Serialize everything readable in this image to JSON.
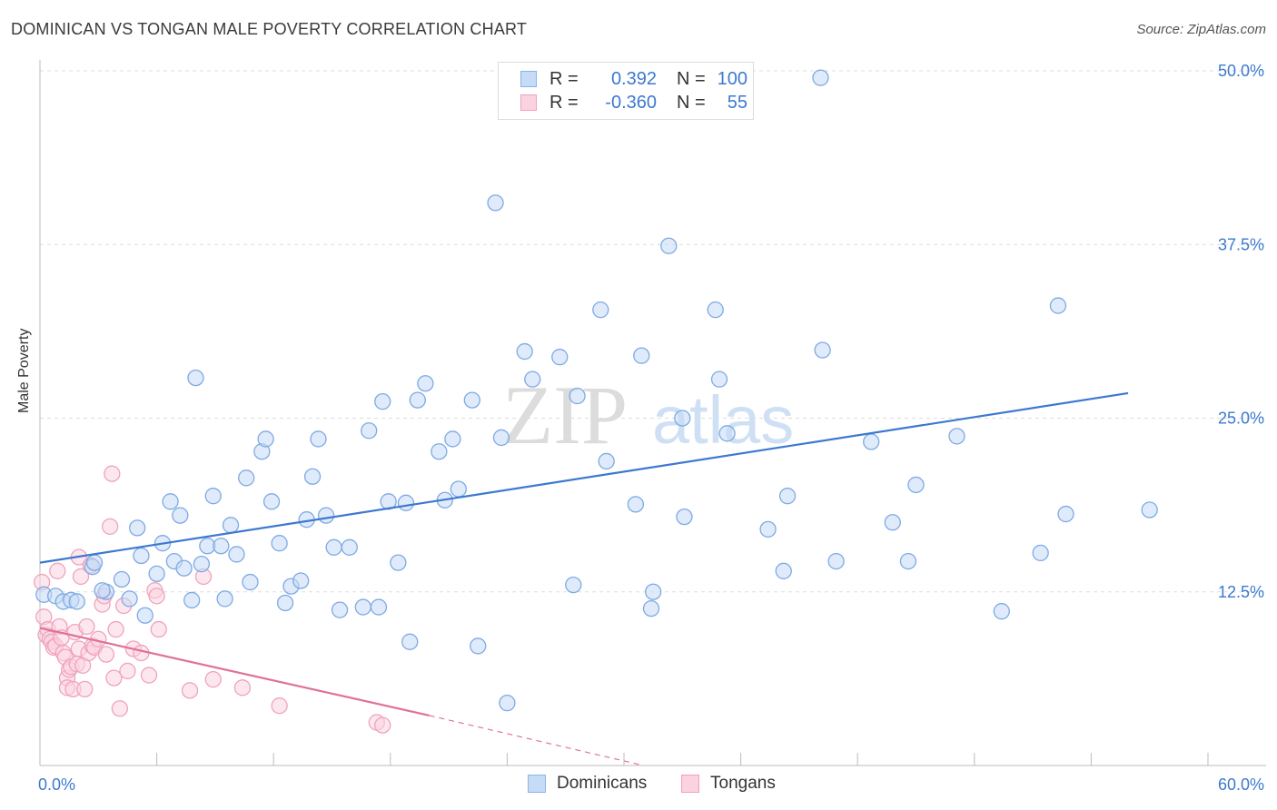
{
  "title": "DOMINICAN VS TONGAN MALE POVERTY CORRELATION CHART",
  "source": "Source: ZipAtlas.com",
  "watermark": {
    "zip": "ZIP",
    "atlas": "atlas"
  },
  "legend_top": {
    "rows": [
      {
        "r_label": "R =",
        "r_value": "0.392",
        "n_label": "N =",
        "n_value": "100",
        "color": "#8ab4ea",
        "fill": "#c5dbf6"
      },
      {
        "r_label": "R =",
        "r_value": "-0.360",
        "n_label": "N =",
        "n_value": "55",
        "color": "#f0a0ba",
        "fill": "#fbd3e0"
      }
    ]
  },
  "chart_data": {
    "type": "scatter",
    "title": "DOMINICAN VS TONGAN MALE POVERTY CORRELATION CHART",
    "xlabel": "",
    "ylabel": "Male Poverty",
    "xlim": [
      0,
      60
    ],
    "ylim": [
      0,
      50
    ],
    "x_tick_labels": [
      "0.0%",
      "60.0%"
    ],
    "y_ticks": [
      12.5,
      25.0,
      37.5,
      50.0
    ],
    "y_tick_labels": [
      "12.5%",
      "25.0%",
      "37.5%",
      "50.0%"
    ],
    "grid": true,
    "legend_position": "bottom",
    "series": [
      {
        "name": "Dominicans",
        "color": "#3c79d0",
        "marker_fill": "#c5dbf6",
        "marker_stroke": "#7eaae3",
        "trend": {
          "x": [
            0,
            55.9
          ],
          "y": [
            14.6,
            26.8
          ],
          "dashed_to": null
        },
        "points": [
          [
            0.2,
            12.3
          ],
          [
            0.8,
            12.2
          ],
          [
            1.2,
            11.8
          ],
          [
            1.6,
            11.9
          ],
          [
            1.9,
            11.8
          ],
          [
            2.7,
            14.3
          ],
          [
            2.8,
            14.6
          ],
          [
            3.4,
            12.5
          ],
          [
            3.2,
            12.6
          ],
          [
            4.2,
            13.4
          ],
          [
            4.6,
            12.0
          ],
          [
            5.0,
            17.1
          ],
          [
            5.2,
            15.1
          ],
          [
            5.4,
            10.8
          ],
          [
            6.0,
            13.8
          ],
          [
            6.3,
            16.0
          ],
          [
            6.7,
            19.0
          ],
          [
            6.9,
            14.7
          ],
          [
            7.2,
            18.0
          ],
          [
            7.4,
            14.2
          ],
          [
            7.8,
            11.9
          ],
          [
            8.0,
            27.9
          ],
          [
            8.3,
            14.5
          ],
          [
            8.6,
            15.8
          ],
          [
            8.9,
            19.4
          ],
          [
            9.3,
            15.8
          ],
          [
            9.5,
            12.0
          ],
          [
            9.8,
            17.3
          ],
          [
            10.1,
            15.2
          ],
          [
            10.6,
            20.7
          ],
          [
            10.8,
            13.2
          ],
          [
            11.4,
            22.6
          ],
          [
            11.6,
            23.5
          ],
          [
            11.9,
            19.0
          ],
          [
            12.3,
            16.0
          ],
          [
            12.6,
            11.7
          ],
          [
            12.9,
            12.9
          ],
          [
            13.4,
            13.3
          ],
          [
            13.7,
            17.7
          ],
          [
            14.0,
            20.8
          ],
          [
            14.3,
            23.5
          ],
          [
            14.7,
            18.0
          ],
          [
            15.1,
            15.7
          ],
          [
            15.4,
            11.2
          ],
          [
            15.9,
            15.7
          ],
          [
            16.6,
            11.4
          ],
          [
            16.9,
            24.1
          ],
          [
            17.4,
            11.4
          ],
          [
            17.6,
            26.2
          ],
          [
            17.9,
            19.0
          ],
          [
            18.4,
            14.6
          ],
          [
            18.8,
            18.9
          ],
          [
            19.0,
            8.9
          ],
          [
            19.4,
            26.3
          ],
          [
            19.8,
            27.5
          ],
          [
            20.5,
            22.6
          ],
          [
            20.8,
            19.1
          ],
          [
            21.2,
            23.5
          ],
          [
            21.5,
            19.9
          ],
          [
            22.2,
            26.3
          ],
          [
            22.5,
            8.6
          ],
          [
            23.4,
            40.5
          ],
          [
            23.7,
            23.6
          ],
          [
            24.0,
            4.5
          ],
          [
            24.9,
            29.8
          ],
          [
            25.3,
            27.8
          ],
          [
            26.7,
            29.4
          ],
          [
            27.4,
            13.0
          ],
          [
            27.6,
            26.6
          ],
          [
            28.8,
            32.8
          ],
          [
            29.1,
            21.9
          ],
          [
            30.6,
            18.8
          ],
          [
            30.9,
            29.5
          ],
          [
            31.4,
            11.3
          ],
          [
            31.5,
            12.5
          ],
          [
            32.3,
            37.4
          ],
          [
            33.0,
            25.0
          ],
          [
            33.1,
            17.9
          ],
          [
            34.7,
            32.8
          ],
          [
            34.9,
            27.8
          ],
          [
            35.3,
            23.9
          ],
          [
            37.4,
            17.0
          ],
          [
            38.2,
            14.0
          ],
          [
            38.4,
            19.4
          ],
          [
            40.1,
            49.5
          ],
          [
            40.2,
            29.9
          ],
          [
            40.9,
            14.7
          ],
          [
            42.7,
            23.3
          ],
          [
            43.8,
            17.5
          ],
          [
            44.6,
            14.7
          ],
          [
            45.0,
            20.2
          ],
          [
            47.1,
            23.7
          ],
          [
            49.4,
            11.1
          ],
          [
            51.4,
            15.3
          ],
          [
            52.3,
            33.1
          ],
          [
            52.7,
            18.1
          ],
          [
            57.0,
            18.4
          ]
        ]
      },
      {
        "name": "Tongans",
        "color": "#e0709a",
        "marker_fill": "#fbd3e0",
        "marker_stroke": "#f0a3bc",
        "trend": {
          "x": [
            0,
            20.0
          ],
          "y": [
            9.9,
            3.6
          ],
          "dashed_to": [
            31.0,
            0.0
          ]
        },
        "points": [
          [
            0.1,
            13.2
          ],
          [
            0.2,
            10.7
          ],
          [
            0.3,
            9.4
          ],
          [
            0.4,
            9.8
          ],
          [
            0.5,
            9.1
          ],
          [
            0.6,
            8.9
          ],
          [
            0.7,
            8.5
          ],
          [
            0.8,
            8.6
          ],
          [
            0.9,
            14.0
          ],
          [
            1.0,
            10.0
          ],
          [
            1.1,
            9.2
          ],
          [
            1.2,
            8.1
          ],
          [
            1.3,
            7.8
          ],
          [
            1.4,
            6.3
          ],
          [
            1.4,
            5.6
          ],
          [
            1.5,
            6.9
          ],
          [
            1.6,
            7.1
          ],
          [
            1.8,
            9.6
          ],
          [
            1.7,
            5.5
          ],
          [
            1.9,
            7.3
          ],
          [
            2.0,
            8.4
          ],
          [
            2.0,
            15.0
          ],
          [
            2.1,
            13.6
          ],
          [
            2.2,
            7.2
          ],
          [
            2.3,
            5.5
          ],
          [
            2.4,
            10.0
          ],
          [
            2.5,
            8.1
          ],
          [
            2.6,
            14.4
          ],
          [
            2.7,
            8.6
          ],
          [
            2.8,
            8.5
          ],
          [
            3.0,
            9.1
          ],
          [
            3.2,
            11.6
          ],
          [
            3.3,
            12.2
          ],
          [
            3.4,
            8.0
          ],
          [
            3.6,
            17.2
          ],
          [
            3.7,
            21.0
          ],
          [
            3.8,
            6.3
          ],
          [
            3.9,
            9.8
          ],
          [
            4.1,
            4.1
          ],
          [
            4.3,
            11.5
          ],
          [
            4.5,
            6.8
          ],
          [
            4.8,
            8.4
          ],
          [
            5.2,
            8.1
          ],
          [
            5.6,
            6.5
          ],
          [
            5.9,
            12.6
          ],
          [
            6.0,
            12.2
          ],
          [
            6.1,
            9.8
          ],
          [
            7.7,
            5.4
          ],
          [
            8.4,
            13.6
          ],
          [
            8.9,
            6.2
          ],
          [
            10.4,
            5.6
          ],
          [
            12.3,
            4.3
          ],
          [
            17.3,
            3.1
          ],
          [
            17.6,
            2.9
          ]
        ]
      }
    ]
  },
  "legend_bottom": {
    "items": [
      {
        "label": "Dominicans",
        "color": "#8ab4ea",
        "fill": "#c5dbf6"
      },
      {
        "label": "Tongans",
        "color": "#f0a0ba",
        "fill": "#fbd3e0"
      }
    ]
  }
}
